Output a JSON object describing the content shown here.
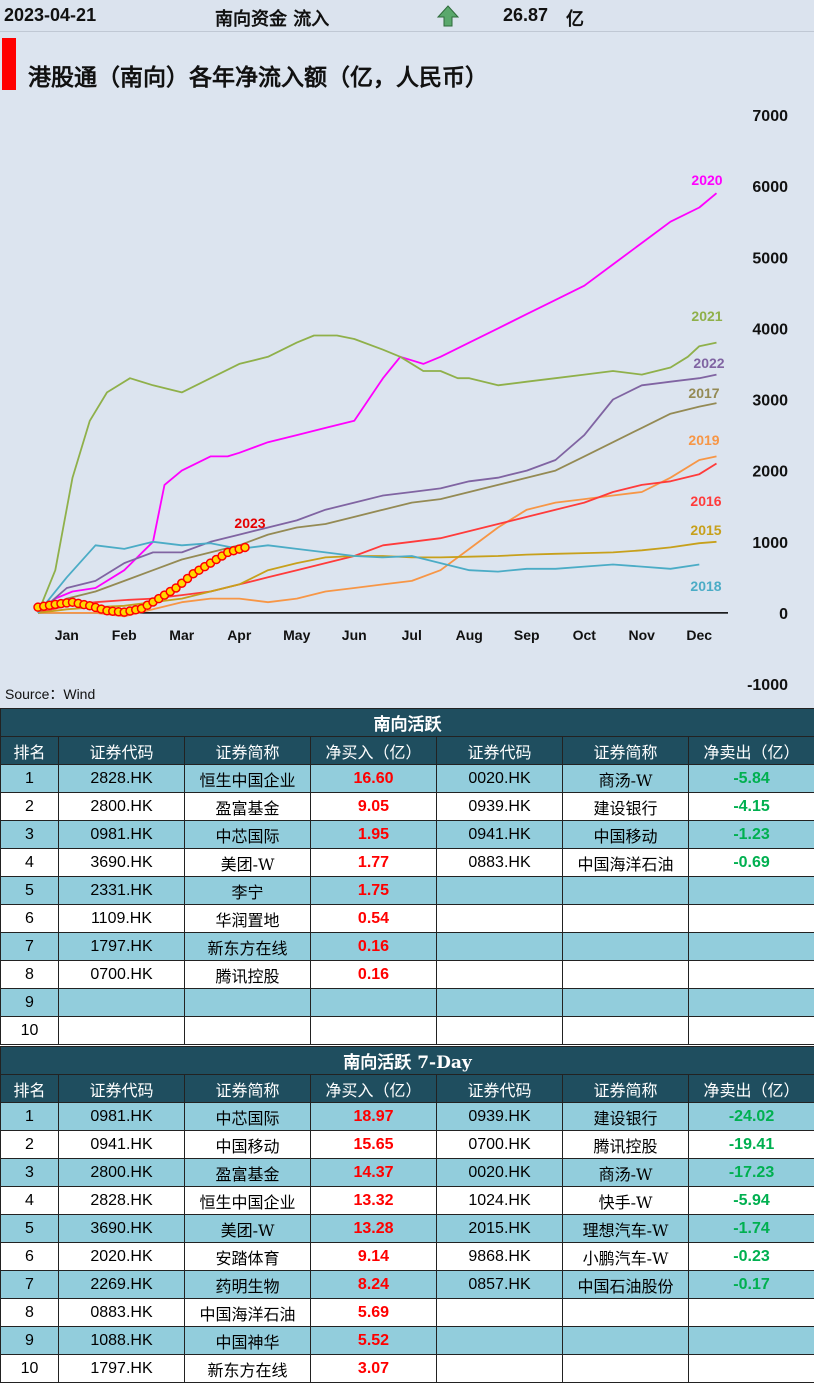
{
  "header": {
    "date": "2023-04-21",
    "label": "南向资金 流入",
    "arrow_icon": "up-arrow-icon",
    "value": "26.87",
    "unit": "亿"
  },
  "chart_title": "港股通（南向）各年净流入额（亿，人民币）",
  "source": "Source：Wind",
  "chart_data": {
    "type": "line",
    "title": "港股通（南向）各年净流入额（亿，人民币）",
    "xlabel": "",
    "ylabel": "",
    "ylim": [
      -1000,
      7000
    ],
    "yticks": [
      -1000,
      0,
      1000,
      2000,
      3000,
      4000,
      5000,
      6000,
      7000
    ],
    "x_months": [
      "Jan",
      "Feb",
      "Mar",
      "Apr",
      "May",
      "Jun",
      "Jul",
      "Aug",
      "Sep",
      "Oct",
      "Nov",
      "Dec"
    ],
    "series": [
      {
        "name": "2020",
        "color": "#ff00ff",
        "x": [
          0,
          0.3,
          0.6,
          1.0,
          1.5,
          2.0,
          2.2,
          2.5,
          3.0,
          3.3,
          3.5,
          4.0,
          4.5,
          5.0,
          5.5,
          6.0,
          6.3,
          6.7,
          7.0,
          7.5,
          8.0,
          8.5,
          9.0,
          9.5,
          10.0,
          10.5,
          11.0,
          11.5,
          11.8
        ],
        "values": [
          0,
          200,
          300,
          350,
          600,
          1000,
          1800,
          2000,
          2200,
          2200,
          2250,
          2400,
          2500,
          2600,
          2700,
          3300,
          3600,
          3500,
          3600,
          3800,
          4000,
          4200,
          4400,
          4600,
          4900,
          5200,
          5500,
          5700,
          5900
        ]
      },
      {
        "name": "2021",
        "color": "#8fb04a",
        "x": [
          0,
          0.3,
          0.6,
          0.9,
          1.2,
          1.6,
          2.0,
          2.5,
          3.0,
          3.5,
          4.0,
          4.5,
          4.8,
          5.2,
          5.5,
          6.0,
          6.3,
          6.7,
          7.0,
          7.3,
          7.5,
          8.0,
          8.5,
          9.0,
          9.5,
          10.0,
          10.5,
          11.0,
          11.3,
          11.5,
          11.8
        ],
        "values": [
          0,
          600,
          1900,
          2700,
          3100,
          3300,
          3200,
          3100,
          3300,
          3500,
          3600,
          3800,
          3900,
          3900,
          3850,
          3700,
          3600,
          3400,
          3400,
          3300,
          3300,
          3200,
          3250,
          3300,
          3350,
          3400,
          3350,
          3450,
          3600,
          3750,
          3800
        ]
      },
      {
        "name": "2022",
        "color": "#8064a2",
        "x": [
          0,
          0.5,
          1.0,
          1.5,
          2.0,
          2.5,
          3.0,
          3.5,
          4.0,
          4.5,
          5.0,
          5.5,
          6.0,
          6.5,
          7.0,
          7.5,
          8.0,
          8.5,
          9.0,
          9.5,
          10.0,
          10.5,
          11.0,
          11.5,
          11.8
        ],
        "values": [
          0,
          350,
          450,
          700,
          850,
          850,
          1000,
          1100,
          1200,
          1300,
          1450,
          1550,
          1650,
          1700,
          1750,
          1850,
          1900,
          2000,
          2150,
          2500,
          3000,
          3200,
          3250,
          3300,
          3350
        ]
      },
      {
        "name": "2017",
        "color": "#948a54",
        "x": [
          0,
          0.5,
          1.0,
          1.5,
          2.0,
          2.5,
          3.0,
          3.5,
          4.0,
          4.5,
          5.0,
          5.5,
          6.0,
          6.5,
          7.0,
          7.5,
          8.0,
          8.5,
          9.0,
          9.5,
          10.0,
          10.5,
          11.0,
          11.5,
          11.8
        ],
        "values": [
          0,
          200,
          300,
          450,
          600,
          750,
          850,
          950,
          1100,
          1200,
          1250,
          1350,
          1450,
          1550,
          1600,
          1700,
          1800,
          1900,
          2000,
          2200,
          2400,
          2600,
          2800,
          2900,
          2950
        ]
      },
      {
        "name": "2019",
        "color": "#f79646",
        "x": [
          0,
          1.0,
          1.5,
          2.0,
          2.5,
          3.0,
          3.5,
          4.0,
          4.5,
          5.0,
          5.5,
          6.0,
          6.5,
          7.0,
          7.5,
          8.0,
          8.5,
          9.0,
          9.5,
          10.0,
          10.5,
          11.0,
          11.5,
          11.8
        ],
        "values": [
          0,
          0,
          -50,
          50,
          150,
          200,
          200,
          150,
          200,
          300,
          350,
          400,
          450,
          600,
          900,
          1200,
          1450,
          1550,
          1600,
          1650,
          1700,
          1900,
          2150,
          2200
        ]
      },
      {
        "name": "2016",
        "color": "#ff3b3b",
        "x": [
          0,
          0.5,
          1.0,
          1.5,
          2.0,
          2.5,
          3.0,
          3.5,
          4.0,
          4.5,
          5.0,
          5.5,
          6.0,
          6.5,
          7.0,
          7.5,
          8.0,
          8.5,
          9.0,
          9.5,
          10.0,
          10.5,
          11.0,
          11.5,
          11.8
        ],
        "values": [
          0,
          100,
          150,
          180,
          200,
          250,
          300,
          400,
          500,
          600,
          700,
          800,
          950,
          1000,
          1050,
          1150,
          1250,
          1350,
          1450,
          1550,
          1700,
          1800,
          1850,
          1950,
          2100
        ]
      },
      {
        "name": "2015",
        "color": "#c7a01b",
        "x": [
          0,
          0.5,
          1.0,
          1.5,
          2.0,
          2.5,
          3.0,
          3.5,
          4.0,
          4.5,
          5.0,
          5.5,
          6.0,
          6.5,
          7.0,
          7.5,
          8.0,
          8.5,
          9.0,
          9.5,
          10.0,
          10.5,
          11.0,
          11.5,
          11.8
        ],
        "values": [
          0,
          50,
          80,
          100,
          150,
          200,
          300,
          400,
          600,
          700,
          780,
          800,
          800,
          780,
          780,
          790,
          800,
          820,
          830,
          840,
          850,
          880,
          920,
          980,
          1000
        ]
      },
      {
        "name": "2018",
        "color": "#4bacc6",
        "x": [
          0,
          0.5,
          1.0,
          1.5,
          2.0,
          2.5,
          3.0,
          3.5,
          4.0,
          4.5,
          5.0,
          5.5,
          6.0,
          6.5,
          7.0,
          7.5,
          8.0,
          8.5,
          9.0,
          9.5,
          10.0,
          10.5,
          11.0,
          11.5
        ],
        "values": [
          0,
          500,
          950,
          900,
          1000,
          950,
          980,
          900,
          950,
          900,
          850,
          800,
          780,
          800,
          700,
          600,
          580,
          620,
          620,
          650,
          680,
          650,
          620,
          680
        ]
      },
      {
        "name": "2023",
        "color": "#e50000",
        "x": [
          0,
          0.3,
          0.6,
          0.9,
          1.2,
          1.5,
          1.8,
          2.1,
          2.4,
          2.7,
          3.0,
          3.3,
          3.6
        ],
        "values": [
          80,
          120,
          150,
          100,
          30,
          10,
          60,
          200,
          350,
          550,
          700,
          850,
          920
        ]
      }
    ]
  },
  "table1": {
    "title": "南向活跃",
    "headers": [
      "排名",
      "证券代码",
      "证券简称",
      "净买入（亿）",
      "证券代码",
      "证券简称",
      "净卖出（亿）"
    ],
    "rows": [
      {
        "rank": "1",
        "buy_code": "2828.HK",
        "buy_name": "恒生中国企业",
        "buy_val": "16.60",
        "sell_code": "0020.HK",
        "sell_name": "商汤-W",
        "sell_val": "-5.84"
      },
      {
        "rank": "2",
        "buy_code": "2800.HK",
        "buy_name": "盈富基金",
        "buy_val": "9.05",
        "sell_code": "0939.HK",
        "sell_name": "建设银行",
        "sell_val": "-4.15"
      },
      {
        "rank": "3",
        "buy_code": "0981.HK",
        "buy_name": "中芯国际",
        "buy_val": "1.95",
        "sell_code": "0941.HK",
        "sell_name": "中国移动",
        "sell_val": "-1.23"
      },
      {
        "rank": "4",
        "buy_code": "3690.HK",
        "buy_name": "美团-W",
        "buy_val": "1.77",
        "sell_code": "0883.HK",
        "sell_name": "中国海洋石油",
        "sell_val": "-0.69"
      },
      {
        "rank": "5",
        "buy_code": "2331.HK",
        "buy_name": "李宁",
        "buy_val": "1.75",
        "sell_code": "",
        "sell_name": "",
        "sell_val": ""
      },
      {
        "rank": "6",
        "buy_code": "1109.HK",
        "buy_name": "华润置地",
        "buy_val": "0.54",
        "sell_code": "",
        "sell_name": "",
        "sell_val": ""
      },
      {
        "rank": "7",
        "buy_code": "1797.HK",
        "buy_name": "新东方在线",
        "buy_val": "0.16",
        "sell_code": "",
        "sell_name": "",
        "sell_val": ""
      },
      {
        "rank": "8",
        "buy_code": "0700.HK",
        "buy_name": "腾讯控股",
        "buy_val": "0.16",
        "sell_code": "",
        "sell_name": "",
        "sell_val": ""
      },
      {
        "rank": "9",
        "buy_code": "",
        "buy_name": "",
        "buy_val": "",
        "sell_code": "",
        "sell_name": "",
        "sell_val": ""
      },
      {
        "rank": "10",
        "buy_code": "",
        "buy_name": "",
        "buy_val": "",
        "sell_code": "",
        "sell_name": "",
        "sell_val": ""
      }
    ]
  },
  "table2": {
    "title": "南向活跃 7-Day",
    "headers": [
      "排名",
      "证券代码",
      "证券简称",
      "净买入（亿）",
      "证券代码",
      "证券简称",
      "净卖出（亿）"
    ],
    "rows": [
      {
        "rank": "1",
        "buy_code": "0981.HK",
        "buy_name": "中芯国际",
        "buy_val": "18.97",
        "sell_code": "0939.HK",
        "sell_name": "建设银行",
        "sell_val": "-24.02"
      },
      {
        "rank": "2",
        "buy_code": "0941.HK",
        "buy_name": "中国移动",
        "buy_val": "15.65",
        "sell_code": "0700.HK",
        "sell_name": "腾讯控股",
        "sell_val": "-19.41"
      },
      {
        "rank": "3",
        "buy_code": "2800.HK",
        "buy_name": "盈富基金",
        "buy_val": "14.37",
        "sell_code": "0020.HK",
        "sell_name": "商汤-W",
        "sell_val": "-17.23"
      },
      {
        "rank": "4",
        "buy_code": "2828.HK",
        "buy_name": "恒生中国企业",
        "buy_val": "13.32",
        "sell_code": "1024.HK",
        "sell_name": "快手-W",
        "sell_val": "-5.94"
      },
      {
        "rank": "5",
        "buy_code": "3690.HK",
        "buy_name": "美团-W",
        "buy_val": "13.28",
        "sell_code": "2015.HK",
        "sell_name": "理想汽车-W",
        "sell_val": "-1.74"
      },
      {
        "rank": "6",
        "buy_code": "2020.HK",
        "buy_name": "安踏体育",
        "buy_val": "9.14",
        "sell_code": "9868.HK",
        "sell_name": "小鹏汽车-W",
        "sell_val": "-0.23"
      },
      {
        "rank": "7",
        "buy_code": "2269.HK",
        "buy_name": "药明生物",
        "buy_val": "8.24",
        "sell_code": "0857.HK",
        "sell_name": "中国石油股份",
        "sell_val": "-0.17"
      },
      {
        "rank": "8",
        "buy_code": "0883.HK",
        "buy_name": "中国海洋石油",
        "buy_val": "5.69",
        "sell_code": "",
        "sell_name": "",
        "sell_val": ""
      },
      {
        "rank": "9",
        "buy_code": "1088.HK",
        "buy_name": "中国神华",
        "buy_val": "5.52",
        "sell_code": "",
        "sell_name": "",
        "sell_val": ""
      },
      {
        "rank": "10",
        "buy_code": "1797.HK",
        "buy_name": "新东方在线",
        "buy_val": "3.07",
        "sell_code": "",
        "sell_name": "",
        "sell_val": ""
      }
    ]
  }
}
